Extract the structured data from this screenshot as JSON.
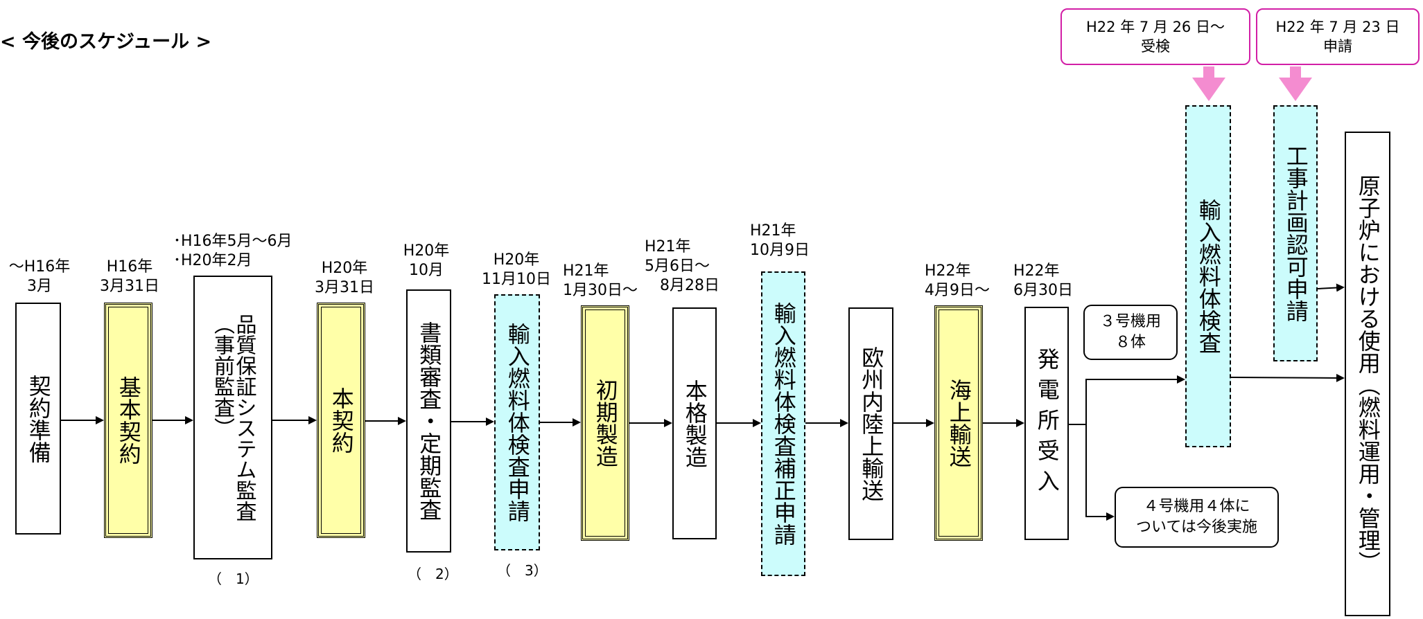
{
  "title": "< 今後のスケジュール >",
  "steps": [
    {
      "id": "keiyaku-junbi",
      "date": "～H16年\n3月",
      "label": "契約準備",
      "style": "plain"
    },
    {
      "id": "kihon-keiyaku",
      "date": "H16年\n3月31日",
      "label": "基本契約",
      "style": "yellow"
    },
    {
      "id": "hinshitsu-hosho",
      "date": "･H16年5月～6月\n･H20年2月",
      "label": "品質保証システム監査",
      "sublabel": "（事前監査）",
      "note": "（　1）",
      "style": "plain"
    },
    {
      "id": "hon-keiyaku",
      "date": "H20年\n3月31日",
      "label": "本契約",
      "style": "yellow"
    },
    {
      "id": "shorui-shinsa",
      "date": "H20年\n10月",
      "label": "書類審査・定期監査",
      "note": "（　2）",
      "style": "plain"
    },
    {
      "id": "yunyu-shinsei",
      "date": "H20年\n11月10日",
      "label": "輸入燃料体検査申請",
      "note": "（　3）",
      "style": "cyan"
    },
    {
      "id": "shoki-seizo",
      "date": "H21年\n1月30日～",
      "label": "初期製造",
      "style": "yellow"
    },
    {
      "id": "honkaku-seizo",
      "date": "H21年\n5月6日～\n　8月28日",
      "label": "本格製造",
      "style": "plain"
    },
    {
      "id": "hosei-shinsei",
      "date": "H21年\n10月9日",
      "label": "輸入燃料体検査補正申請",
      "style": "cyan"
    },
    {
      "id": "oshu-yuso",
      "date": "",
      "label": "欧州内陸上輸送",
      "style": "plain"
    },
    {
      "id": "kaijo-yuso",
      "date": "H22年\n4月9日～",
      "label": "海上輸送",
      "style": "yellow"
    },
    {
      "id": "hatsudensho-ukeire",
      "date": "H22年\n6月30日",
      "label": "発電所受入",
      "style": "plain"
    }
  ],
  "unit3_label": "３号機用\n８体",
  "unit4_label": "４号機用４体に\nついては今後実施",
  "inspection": {
    "label": "輸入燃料体検査",
    "callout": "H22 年 7 月 26 日～\n受検"
  },
  "construction_plan": {
    "label": "工事計画認可申請",
    "callout": "H22 年 7 月 23 日\n申請"
  },
  "final": {
    "label": "原子炉における使用（燃料運用・管理）"
  },
  "colors": {
    "yellow": "#ffffa8",
    "cyan": "#ccfcfc",
    "callout_border": "#d21ea6",
    "callout_arrow": "#f48cd0"
  }
}
